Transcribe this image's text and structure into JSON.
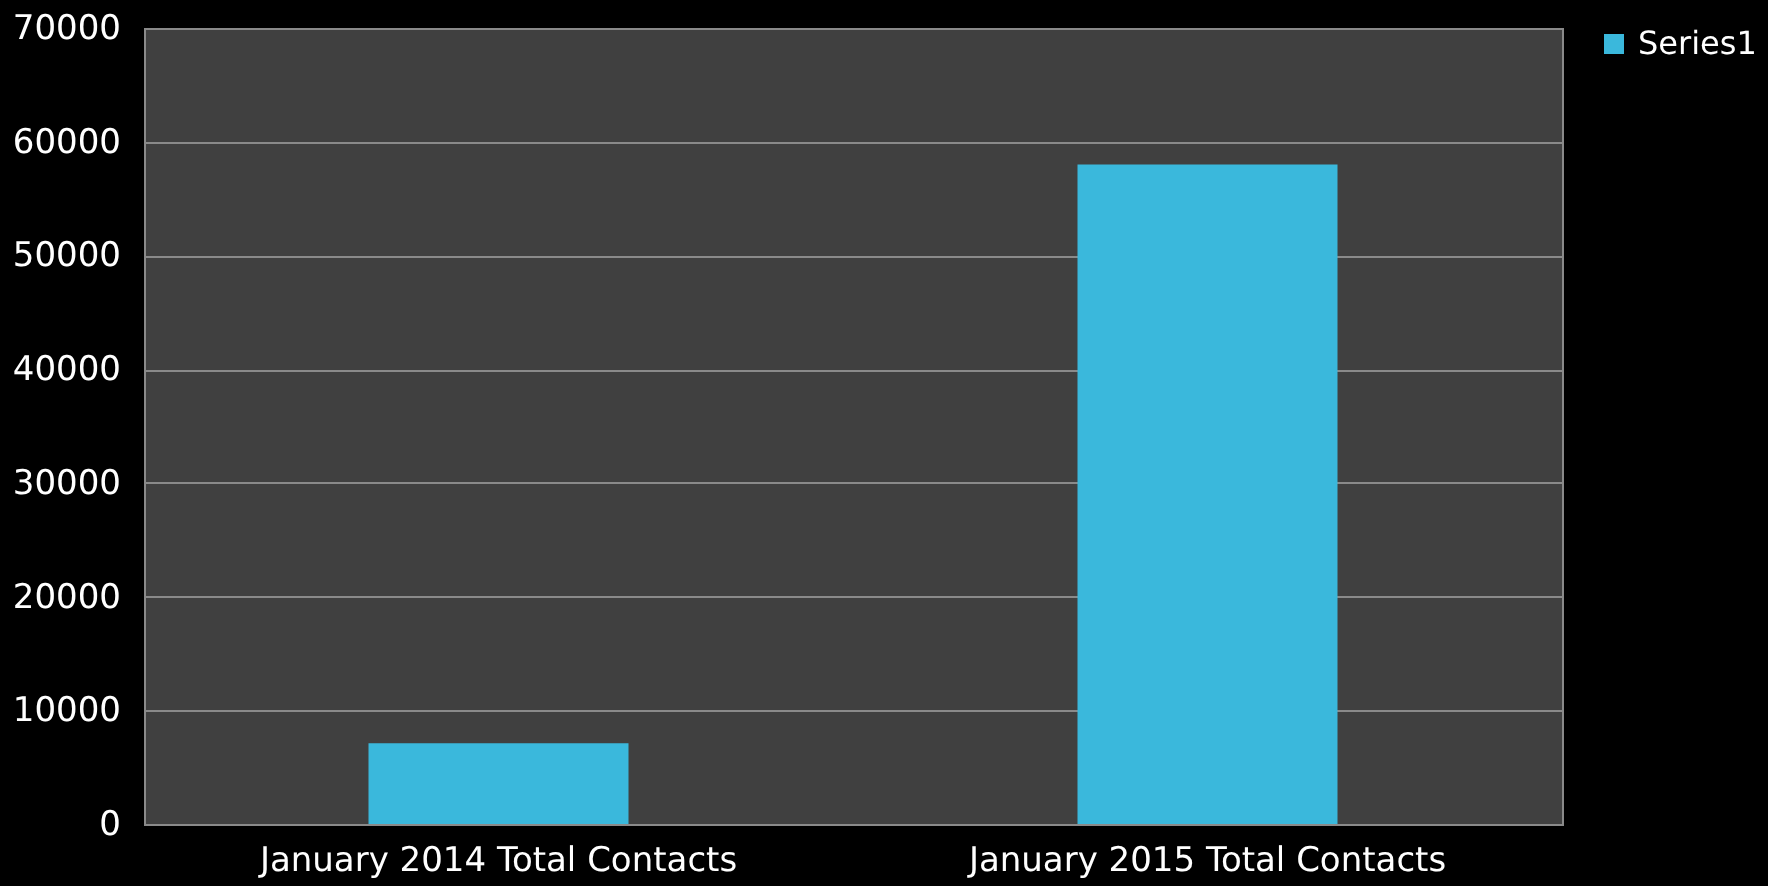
{
  "chart_data": {
    "type": "bar",
    "categories": [
      "January 2014 Total Contacts",
      "January 2015 Total Contacts"
    ],
    "series": [
      {
        "name": "Series1",
        "color": "#3ab8dc",
        "values": [
          7100,
          58000
        ]
      }
    ],
    "ylim": [
      0,
      70000
    ],
    "yticks": [
      0,
      10000,
      20000,
      30000,
      40000,
      50000,
      60000,
      70000
    ],
    "grid": "y",
    "legend": "right"
  }
}
